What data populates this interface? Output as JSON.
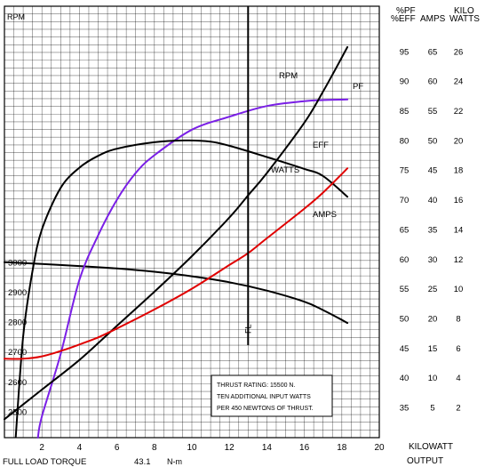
{
  "chart_data": {
    "type": "line",
    "x_axis": {
      "min": 0,
      "max": 20,
      "ticks": [
        "2",
        "4",
        "6",
        "8",
        "10",
        "12",
        "14",
        "16",
        "18",
        "20"
      ],
      "label_line1": "KILOWATT",
      "label_line2": "OUTPUT"
    },
    "rpm_axis": {
      "label": "RPM",
      "min": 2460,
      "max": 3020,
      "ticks": [
        "3000",
        "2900",
        "2800",
        "2700",
        "2600",
        "2500"
      ]
    },
    "right_axes": {
      "headers": {
        "pf_eff": [
          "%PF",
          "%EFF"
        ],
        "amps": [
          "AMPS"
        ],
        "kw": [
          "KILO",
          "WATTS"
        ]
      },
      "rows": [
        {
          "pf_eff": "95",
          "amps": "65",
          "kw": "26"
        },
        {
          "pf_eff": "90",
          "amps": "60",
          "kw": "24"
        },
        {
          "pf_eff": "85",
          "amps": "55",
          "kw": "22"
        },
        {
          "pf_eff": "80",
          "amps": "50",
          "kw": "20"
        },
        {
          "pf_eff": "75",
          "amps": "45",
          "kw": "18"
        },
        {
          "pf_eff": "70",
          "amps": "40",
          "kw": "16"
        },
        {
          "pf_eff": "65",
          "amps": "35",
          "kw": "14"
        },
        {
          "pf_eff": "60",
          "amps": "30",
          "kw": "12"
        },
        {
          "pf_eff": "55",
          "amps": "25",
          "kw": "10"
        },
        {
          "pf_eff": "50",
          "amps": "20",
          "kw": "8"
        },
        {
          "pf_eff": "45",
          "amps": "15",
          "kw": "6"
        },
        {
          "pf_eff": "40",
          "amps": "10",
          "kw": "4"
        },
        {
          "pf_eff": "35",
          "amps": "5",
          "kw": "2"
        }
      ]
    },
    "full_load": {
      "kw": 13,
      "label": "FL"
    },
    "footer": {
      "label": "FULL LOAD TORQUE",
      "value": "43.1",
      "unit": "N-m"
    },
    "note": [
      "THRUST RATING:  15500 N.",
      "TEN ADDITIONAL INPUT WATTS",
      "PER 450 NEWTONS OF THRUST."
    ],
    "series": [
      {
        "name": "RPM",
        "color": "#000000",
        "scale": "rpm",
        "points": [
          [
            0,
            3000
          ],
          [
            2,
            2994
          ],
          [
            4,
            2987
          ],
          [
            6,
            2979
          ],
          [
            8,
            2968
          ],
          [
            10,
            2953
          ],
          [
            12,
            2933
          ],
          [
            14,
            2905
          ],
          [
            16,
            2868
          ],
          [
            17,
            2840
          ],
          [
            18.3,
            2797
          ]
        ]
      },
      {
        "name": "PF",
        "color": "#7a1fe6",
        "scale": "pf_eff",
        "points": [
          [
            1.6,
            26.8
          ],
          [
            2,
            33.5
          ],
          [
            3,
            44
          ],
          [
            4,
            56.5
          ],
          [
            5,
            64
          ],
          [
            6,
            70
          ],
          [
            7,
            74.5
          ],
          [
            8,
            77.5
          ],
          [
            10,
            81.8
          ],
          [
            12,
            84
          ],
          [
            14,
            85.8
          ],
          [
            16,
            86.6
          ],
          [
            17,
            86.8
          ],
          [
            18.3,
            86.9
          ]
        ]
      },
      {
        "name": "EFF",
        "color": "#000000",
        "scale": "pf_eff",
        "points": [
          [
            0.6,
            30
          ],
          [
            1,
            47
          ],
          [
            1.5,
            58
          ],
          [
            2,
            65
          ],
          [
            3,
            72
          ],
          [
            4,
            75.4
          ],
          [
            5,
            77.4
          ],
          [
            6,
            78.6
          ],
          [
            8,
            79.7
          ],
          [
            9.6,
            80
          ],
          [
            11,
            79.8
          ],
          [
            12,
            79.1
          ],
          [
            14,
            77.2
          ],
          [
            16,
            75.2
          ],
          [
            17,
            74
          ],
          [
            18.3,
            70.5
          ]
        ]
      },
      {
        "name": "WATTS",
        "color": "#000000",
        "scale": "kw",
        "points": [
          [
            0,
            1.2
          ],
          [
            2,
            3.2
          ],
          [
            4,
            5.2
          ],
          [
            6,
            7.5
          ],
          [
            8,
            9.8
          ],
          [
            10,
            12.2
          ],
          [
            12,
            14.8
          ],
          [
            13,
            16.3
          ],
          [
            14,
            17.8
          ],
          [
            16,
            21.2
          ],
          [
            17,
            23.3
          ],
          [
            18.3,
            26.3
          ]
        ]
      },
      {
        "name": "AMPS",
        "color": "#e00000",
        "scale": "amps",
        "points": [
          [
            0,
            13.2
          ],
          [
            1,
            13.2
          ],
          [
            2,
            13.6
          ],
          [
            3,
            14.5
          ],
          [
            4,
            15.6
          ],
          [
            5,
            16.8
          ],
          [
            6,
            18.3
          ],
          [
            8,
            21.5
          ],
          [
            10,
            25
          ],
          [
            12,
            29
          ],
          [
            13,
            31
          ],
          [
            14,
            33.5
          ],
          [
            16,
            38.5
          ],
          [
            17,
            41.2
          ],
          [
            18.3,
            45.3
          ]
        ]
      }
    ]
  }
}
